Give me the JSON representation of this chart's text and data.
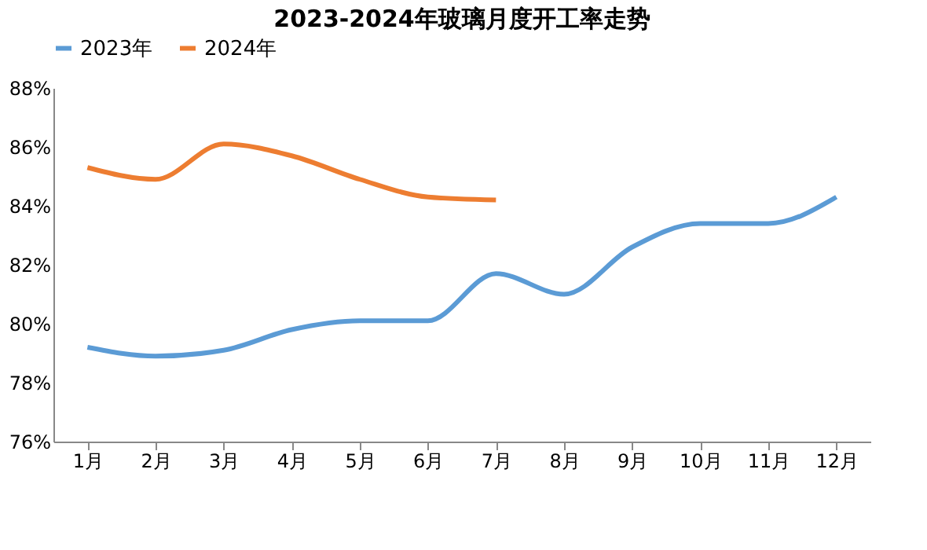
{
  "chart_data": {
    "type": "line",
    "title": "2023-2024年玻璃月度开工率走势",
    "categories": [
      "1月",
      "2月",
      "3月",
      "4月",
      "5月",
      "6月",
      "7月",
      "8月",
      "9月",
      "10月",
      "11月",
      "12月"
    ],
    "series": [
      {
        "name": "2023年",
        "color": "#5b9bd5",
        "values": [
          79.2,
          78.9,
          79.1,
          79.8,
          80.1,
          80.1,
          81.7,
          81.0,
          82.6,
          83.4,
          83.4,
          84.3
        ]
      },
      {
        "name": "2024年",
        "color": "#ed7d31",
        "values": [
          85.3,
          84.9,
          86.1,
          85.7,
          84.9,
          84.3,
          84.2,
          null,
          null,
          null,
          null,
          null
        ]
      }
    ],
    "ylim": [
      76,
      88
    ],
    "yticks": [
      {
        "value": 76,
        "label": "76%"
      },
      {
        "value": 78,
        "label": "78%"
      },
      {
        "value": 80,
        "label": "80%"
      },
      {
        "value": 82,
        "label": "82%"
      },
      {
        "value": 84,
        "label": "84%"
      },
      {
        "value": 86,
        "label": "86%"
      },
      {
        "value": 88,
        "label": "88%"
      }
    ],
    "grid": false,
    "legend": "top",
    "marker": "none",
    "line_style": "solid"
  }
}
